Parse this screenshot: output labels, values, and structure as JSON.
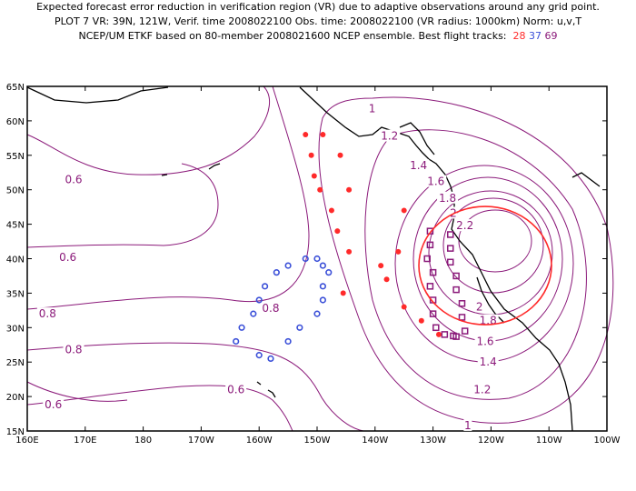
{
  "title": {
    "line1": "Expected forecast error reduction in verification region (VR) due to adaptive observations around any grid point.",
    "line2": "PLOT 7 VR: 39N, 121W, Verif. time 2008022100 Obs. time: 2008022100 (VR radius: 1000km) Norm: u,v,T",
    "line3_prefix": "NCEP/UM ETKF based on 80-member 2008021600 NCEP ensemble.  Best flight tracks:",
    "track_a": "28",
    "track_b": "37",
    "track_c": "69"
  },
  "colors": {
    "contour": "#8b1a7a",
    "coast": "#000000",
    "track_red": "#ff2a2a",
    "track_blue": "#3a4fd8",
    "track_purple": "#8b1a7a",
    "vr_circle": "#ff2a2a"
  },
  "map": {
    "lon_range": [
      160,
      260
    ],
    "lat_range": [
      15,
      65
    ],
    "x_ticks": [
      "160E",
      "170E",
      "180",
      "170W",
      "160W",
      "150W",
      "140W",
      "130W",
      "120W",
      "110W",
      "100W"
    ],
    "y_ticks": [
      "15N",
      "20N",
      "25N",
      "30N",
      "35N",
      "40N",
      "45N",
      "50N",
      "55N",
      "60N",
      "65N"
    ],
    "vr_center": [
      239,
      39
    ]
  },
  "contour_labels": [
    {
      "text": "1",
      "lon": 219.5,
      "lat": 61.8
    },
    {
      "text": "1.2",
      "lon": 222.5,
      "lat": 57.8
    },
    {
      "text": "1.4",
      "lon": 227.5,
      "lat": 53.5
    },
    {
      "text": "1.6",
      "lon": 230.5,
      "lat": 51.2
    },
    {
      "text": "1.8",
      "lon": 232.5,
      "lat": 48.8
    },
    {
      "text": "2",
      "lon": 233.5,
      "lat": 46.6
    },
    {
      "text": "2.2",
      "lon": 235.5,
      "lat": 44.8
    },
    {
      "text": "0.6",
      "lon": 168.0,
      "lat": 51.5
    },
    {
      "text": "0.6",
      "lon": 167.0,
      "lat": 40.2
    },
    {
      "text": "0.8",
      "lon": 163.5,
      "lat": 32.0
    },
    {
      "text": "0.8",
      "lon": 168.0,
      "lat": 26.8
    },
    {
      "text": "0.8",
      "lon": 202.0,
      "lat": 32.8
    },
    {
      "text": "0.6",
      "lon": 196.0,
      "lat": 21.0
    },
    {
      "text": "0.6",
      "lon": 164.5,
      "lat": 18.8
    },
    {
      "text": "2",
      "lon": 238.0,
      "lat": 33.0
    },
    {
      "text": "1.8",
      "lon": 239.5,
      "lat": 31.0
    },
    {
      "text": "1.6",
      "lon": 239.0,
      "lat": 28.0
    },
    {
      "text": "1.4",
      "lon": 239.5,
      "lat": 25.0
    },
    {
      "text": "1.2",
      "lon": 238.5,
      "lat": 21.0
    },
    {
      "text": "1",
      "lon": 236.0,
      "lat": 15.8
    }
  ]
}
